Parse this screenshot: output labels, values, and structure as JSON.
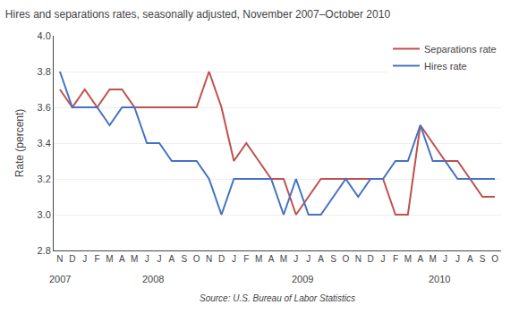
{
  "chart_data": {
    "type": "line",
    "title": "Hires and separations rates, seasonally adjusted, November 2007–October 2010",
    "ylabel": "Rate (percent)",
    "source": "Source: U.S. Bureau of Labor Statistics",
    "categories": [
      "N",
      "D",
      "J",
      "F",
      "M",
      "A",
      "M",
      "J",
      "J",
      "A",
      "S",
      "O",
      "N",
      "D",
      "J",
      "F",
      "M",
      "A",
      "M",
      "J",
      "J",
      "A",
      "S",
      "O",
      "N",
      "D",
      "J",
      "F",
      "M",
      "A",
      "M",
      "J",
      "J",
      "A",
      "S",
      "O"
    ],
    "series": [
      {
        "name": "Separations rate",
        "color": "#C0504D",
        "values": [
          3.7,
          3.6,
          3.7,
          3.6,
          3.7,
          3.7,
          3.6,
          3.6,
          3.6,
          3.6,
          3.6,
          3.6,
          3.8,
          3.6,
          3.3,
          3.4,
          3.3,
          3.2,
          3.2,
          3.0,
          3.1,
          3.2,
          3.2,
          3.2,
          3.2,
          3.2,
          3.2,
          3.0,
          3.0,
          3.5,
          3.4,
          3.3,
          3.3,
          3.2,
          3.1,
          3.1
        ]
      },
      {
        "name": "Hires rate",
        "color": "#4472C4",
        "values": [
          3.8,
          3.6,
          3.6,
          3.6,
          3.5,
          3.6,
          3.6,
          3.4,
          3.4,
          3.3,
          3.3,
          3.3,
          3.2,
          3.0,
          3.2,
          3.2,
          3.2,
          3.2,
          3.0,
          3.2,
          3.0,
          3.0,
          3.1,
          3.2,
          3.1,
          3.2,
          3.2,
          3.3,
          3.3,
          3.5,
          3.3,
          3.3,
          3.2,
          3.2,
          3.2,
          3.2
        ]
      }
    ],
    "annotations": [
      {
        "text": "2007",
        "x": 0
      },
      {
        "text": "2008",
        "x": 7.5
      },
      {
        "text": "2009",
        "x": 19.5
      },
      {
        "text": "2010",
        "x": 30.5
      }
    ],
    "ylim": [
      2.8,
      4.0
    ],
    "yticks": [
      2.8,
      {
        "value": 3.0,
        "label": "3.0"
      },
      3.2,
      3.4,
      3.6,
      3.8,
      {
        "value": 4.0,
        "label": "4.0"
      }
    ],
    "grid": true,
    "legend": "upper right"
  }
}
